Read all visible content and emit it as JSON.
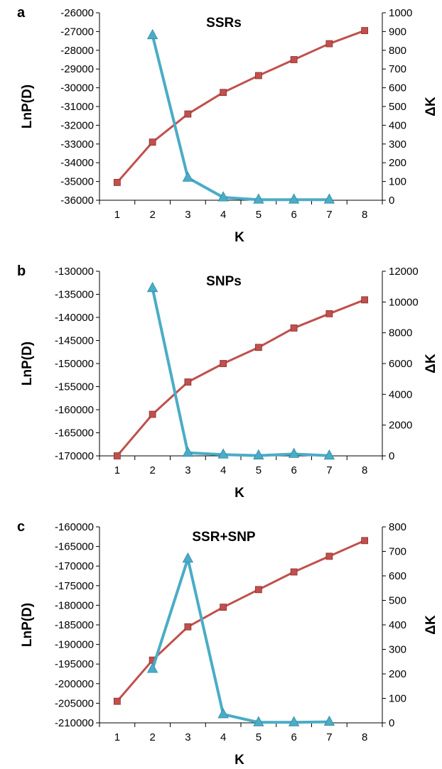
{
  "colors": {
    "lnp_series": "#c0504d",
    "delta_series": "#4bacc6",
    "axis": "#000000"
  },
  "chart_data": [
    {
      "type": "line",
      "panel_label": "a",
      "title": "SSRs",
      "xlabel": "K",
      "ylabel_left": "LnP(D)",
      "ylabel_right": "ΔK",
      "categories": [
        1,
        2,
        3,
        4,
        5,
        6,
        7,
        8
      ],
      "xticks": [
        "1",
        "2",
        "3",
        "4",
        "5",
        "6",
        "7",
        "8"
      ],
      "ylim_left": [
        -36000,
        -26000
      ],
      "yticks_left": [
        "-26000",
        "-27000",
        "-28000",
        "-29000",
        "-30000",
        "-31000",
        "-32000",
        "-33000",
        "-34000",
        "-35000",
        "-36000"
      ],
      "ylim_right": [
        0,
        1000
      ],
      "yticks_right": [
        "1000",
        "900",
        "800",
        "700",
        "600",
        "500",
        "400",
        "300",
        "200",
        "100",
        "0"
      ],
      "grid": false,
      "series": [
        {
          "axis": "left",
          "marker": "square",
          "x": [
            1,
            2,
            3,
            4,
            5,
            6,
            7,
            8
          ],
          "values": [
            -35050,
            -32900,
            -31400,
            -30250,
            -29350,
            -28500,
            -27650,
            -26950
          ]
        },
        {
          "axis": "right",
          "marker": "triangle",
          "x": [
            2,
            3,
            4,
            5,
            6,
            7
          ],
          "values": [
            880,
            120,
            15,
            3,
            3,
            3
          ]
        }
      ]
    },
    {
      "type": "line",
      "panel_label": "b",
      "title": "SNPs",
      "xlabel": "K",
      "ylabel_left": "LnP(D)",
      "ylabel_right": "ΔK",
      "categories": [
        1,
        2,
        3,
        4,
        5,
        6,
        7,
        8
      ],
      "xticks": [
        "1",
        "2",
        "3",
        "4",
        "5",
        "6",
        "7",
        "8"
      ],
      "ylim_left": [
        -170000,
        -130000
      ],
      "yticks_left": [
        "-130000",
        "-135000",
        "-140000",
        "-145000",
        "-150000",
        "-155000",
        "-160000",
        "-165000",
        "-170000"
      ],
      "ylim_right": [
        0,
        12000
      ],
      "yticks_right": [
        "12000",
        "10000",
        "8000",
        "6000",
        "4000",
        "2000",
        "0"
      ],
      "grid": false,
      "series": [
        {
          "axis": "left",
          "marker": "square",
          "x": [
            1,
            2,
            3,
            4,
            5,
            6,
            7,
            8
          ],
          "values": [
            -170000,
            -161000,
            -154000,
            -150000,
            -146500,
            -142300,
            -139200,
            -136200
          ]
        },
        {
          "axis": "right",
          "marker": "triangle",
          "x": [
            2,
            3,
            4,
            5,
            6,
            7
          ],
          "values": [
            10900,
            200,
            80,
            20,
            120,
            10
          ]
        }
      ]
    },
    {
      "type": "line",
      "panel_label": "c",
      "title": "SSR+SNP",
      "xlabel": "K",
      "ylabel_left": "LnP(D)",
      "ylabel_right": "ΔK",
      "categories": [
        1,
        2,
        3,
        4,
        5,
        6,
        7,
        8
      ],
      "xticks": [
        "1",
        "2",
        "3",
        "4",
        "5",
        "6",
        "7",
        "8"
      ],
      "ylim_left": [
        -210000,
        -160000
      ],
      "yticks_left": [
        "-160000",
        "-165000",
        "-170000",
        "-175000",
        "-180000",
        "-185000",
        "-190000",
        "-195000",
        "-200000",
        "-205000",
        "-210000"
      ],
      "ylim_right": [
        0,
        800
      ],
      "yticks_right": [
        "800",
        "700",
        "600",
        "500",
        "400",
        "300",
        "200",
        "100",
        "0"
      ],
      "grid": false,
      "series": [
        {
          "axis": "left",
          "marker": "square",
          "x": [
            1,
            2,
            3,
            4,
            5,
            6,
            7,
            8
          ],
          "values": [
            -204500,
            -194000,
            -185500,
            -180500,
            -176000,
            -171500,
            -167500,
            -163500
          ]
        },
        {
          "axis": "right",
          "marker": "triangle",
          "x": [
            2,
            3,
            4,
            5,
            6,
            7
          ],
          "values": [
            220,
            670,
            35,
            2,
            2,
            4
          ]
        }
      ]
    }
  ]
}
